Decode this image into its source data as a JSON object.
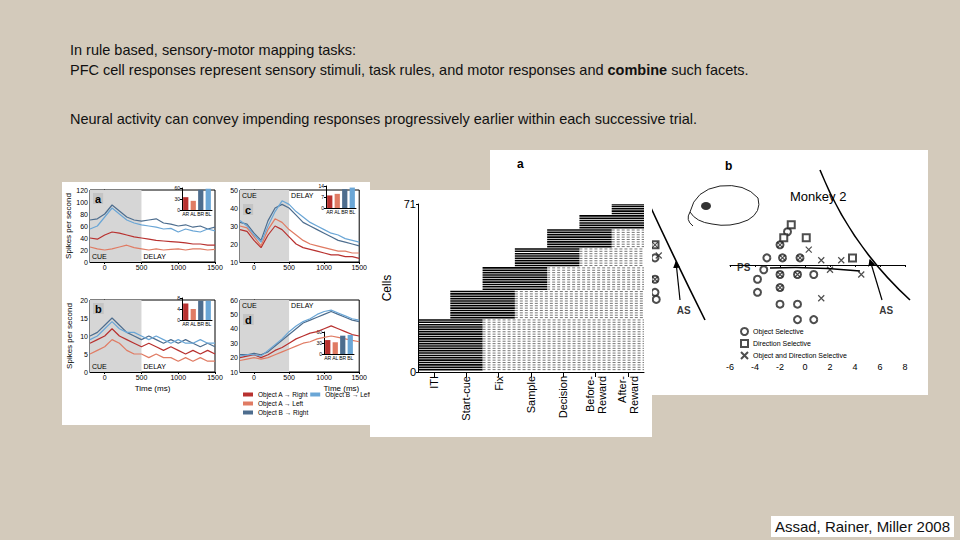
{
  "slide": {
    "lines": [
      "In rule based, sensory-motor mapping tasks:",
      "PFC cell responses represent sensory stimuli, task rules, and motor responses and combine such facets.",
      "Neural activity can convey impending responses progressively earlier within each successive trial."
    ],
    "emphasis": "combine",
    "citation": "Assad, Rainer, Miller 2008"
  },
  "chart_data": [
    {
      "type": "line",
      "title": "a",
      "y_label": "Spikes per second",
      "x": [
        -200,
        -100,
        0,
        100,
        200,
        300,
        400,
        500,
        600,
        700,
        800,
        900,
        1000,
        1100,
        1200,
        1300,
        1400,
        1500
      ],
      "xlim": [
        -200,
        1500
      ],
      "xticks": [
        0,
        500,
        1000,
        1500
      ],
      "ylim": [
        0,
        120
      ],
      "yticks": [
        0,
        20,
        40,
        60,
        80,
        100,
        120
      ],
      "cue_period": [
        -200,
        500
      ],
      "annotations": [
        "CUE",
        "DELAY"
      ],
      "series": [
        {
          "name": "Object A → Right",
          "color": "#b8312f",
          "values": [
            40,
            38,
            45,
            50,
            48,
            45,
            42,
            40,
            38,
            36,
            35,
            34,
            33,
            32,
            30,
            30,
            28,
            28
          ]
        },
        {
          "name": "Object A → Left",
          "color": "#e07b63",
          "values": [
            25,
            22,
            20,
            22,
            25,
            28,
            24,
            22,
            20,
            22,
            20,
            21,
            22,
            20,
            22,
            22,
            20,
            21
          ]
        },
        {
          "name": "Object B → Right",
          "color": "#4d6d8e",
          "values": [
            70,
            72,
            80,
            95,
            85,
            75,
            70,
            68,
            70,
            72,
            65,
            63,
            60,
            62,
            58,
            60,
            55,
            58
          ]
        },
        {
          "name": "Object B → Left",
          "color": "#6aa6d6",
          "values": [
            55,
            60,
            75,
            90,
            80,
            70,
            65,
            62,
            60,
            58,
            55,
            56,
            50,
            55,
            52,
            50,
            55,
            52
          ]
        }
      ],
      "inset": {
        "type": "bar",
        "categories": [
          "AR",
          "AL",
          "BR",
          "BL"
        ],
        "values": [
          35,
          25,
          55,
          58
        ],
        "colors": [
          "#b8312f",
          "#e07b63",
          "#4d6d8e",
          "#6aa6d6"
        ],
        "ylim": [
          0,
          60
        ],
        "yticks": [
          0,
          30,
          60
        ]
      }
    },
    {
      "type": "line",
      "title": "b",
      "y_label": "Spikes per second",
      "x_label": "Time (ms)",
      "x": [
        -200,
        -100,
        0,
        100,
        200,
        300,
        400,
        500,
        600,
        700,
        800,
        900,
        1000,
        1100,
        1200,
        1300,
        1400,
        1500
      ],
      "xlim": [
        -200,
        1500
      ],
      "xticks": [
        0,
        500,
        1000,
        1500
      ],
      "ylim": [
        0,
        20
      ],
      "yticks": [
        0,
        5,
        10,
        15,
        20
      ],
      "cue_period": [
        -200,
        500
      ],
      "annotations": [
        "CUE",
        "DELAY"
      ],
      "series": [
        {
          "name": "Object A → Right",
          "color": "#b8312f",
          "values": [
            8,
            9,
            10,
            12,
            10,
            9,
            8,
            7,
            8,
            7,
            6,
            7,
            6,
            5,
            6,
            5,
            6,
            5
          ]
        },
        {
          "name": "Object A → Left",
          "color": "#e07b63",
          "values": [
            5,
            6,
            7,
            9,
            8,
            6,
            5,
            5,
            4,
            5,
            4,
            4,
            3,
            4,
            3,
            4,
            3,
            3
          ]
        },
        {
          "name": "Object B → Right",
          "color": "#4d6d8e",
          "values": [
            10,
            11,
            13,
            15,
            13,
            11,
            10,
            9,
            10,
            9,
            8,
            9,
            8,
            9,
            8,
            7,
            8,
            7
          ]
        },
        {
          "name": "Object B → Left",
          "color": "#6aa6d6",
          "values": [
            9,
            10,
            12,
            14,
            12,
            11,
            11,
            10,
            9,
            10,
            9,
            8,
            9,
            8,
            8,
            9,
            8,
            8
          ]
        }
      ],
      "inset": {
        "type": "bar",
        "categories": [
          "AR",
          "AL",
          "BR",
          "BL"
        ],
        "values": [
          6,
          4,
          7,
          7
        ],
        "colors": [
          "#b8312f",
          "#e07b63",
          "#4d6d8e",
          "#6aa6d6"
        ],
        "ylim": [
          0,
          8
        ],
        "yticks": [
          0,
          4,
          8
        ]
      }
    },
    {
      "type": "line",
      "title": "c",
      "x": [
        -200,
        -100,
        0,
        100,
        200,
        300,
        400,
        500,
        600,
        700,
        800,
        900,
        1000,
        1100,
        1200,
        1300,
        1400,
        1500
      ],
      "xlim": [
        -200,
        1500
      ],
      "xticks": [
        0,
        500,
        1000,
        1500
      ],
      "ylim": [
        10,
        50
      ],
      "yticks": [
        10,
        20,
        30,
        40,
        50
      ],
      "cue_period": [
        -200,
        500
      ],
      "annotations": [
        "CUE",
        "DELAY"
      ],
      "series": [
        {
          "name": "Object A → Right",
          "color": "#b8312f",
          "values": [
            28,
            27,
            22,
            18,
            25,
            30,
            28,
            24,
            20,
            18,
            17,
            16,
            15,
            14,
            14,
            13,
            13,
            12
          ]
        },
        {
          "name": "Object A → Left",
          "color": "#e07b63",
          "values": [
            30,
            29,
            24,
            19,
            28,
            34,
            32,
            28,
            25,
            22,
            20,
            19,
            18,
            17,
            16,
            16,
            15,
            15
          ]
        },
        {
          "name": "Object B → Right",
          "color": "#4d6d8e",
          "values": [
            32,
            31,
            26,
            22,
            33,
            40,
            42,
            40,
            36,
            32,
            30,
            28,
            26,
            24,
            22,
            21,
            20,
            19
          ]
        },
        {
          "name": "Object B → Left",
          "color": "#6aa6d6",
          "values": [
            33,
            30,
            25,
            21,
            30,
            38,
            44,
            42,
            38,
            35,
            32,
            30,
            28,
            26,
            25,
            23,
            22,
            21
          ]
        }
      ],
      "inset": {
        "type": "bar",
        "categories": [
          "AR",
          "AL",
          "BR",
          "BL"
        ],
        "values": [
          8,
          9,
          12,
          13
        ],
        "colors": [
          "#b8312f",
          "#e07b63",
          "#4d6d8e",
          "#6aa6d6"
        ],
        "ylim": [
          0,
          14
        ],
        "yticks": [
          0,
          7,
          14
        ]
      }
    },
    {
      "type": "line",
      "title": "d",
      "x_label": "Time (ms)",
      "legend": "bottom",
      "x": [
        -200,
        -100,
        0,
        100,
        200,
        300,
        400,
        500,
        600,
        700,
        800,
        900,
        1000,
        1100,
        1200,
        1300,
        1400,
        1500
      ],
      "xlim": [
        -200,
        1500
      ],
      "xticks": [
        0,
        500,
        1000,
        1500
      ],
      "ylim": [
        10,
        60
      ],
      "yticks": [
        10,
        20,
        30,
        40,
        50,
        60
      ],
      "cue_period": [
        -200,
        500
      ],
      "annotations": [
        "CUE",
        "DELAY"
      ],
      "series": [
        {
          "name": "Object A → Right",
          "color": "#b8312f",
          "values": [
            20,
            21,
            22,
            20,
            22,
            25,
            27,
            30,
            33,
            35,
            37,
            38,
            40,
            42,
            40,
            38,
            36,
            35
          ]
        },
        {
          "name": "Object A → Left",
          "color": "#e07b63",
          "values": [
            18,
            19,
            20,
            19,
            20,
            22,
            24,
            26,
            28,
            30,
            31,
            33,
            34,
            35,
            34,
            33,
            32,
            31
          ]
        },
        {
          "name": "Object B → Right",
          "color": "#4d6d8e",
          "values": [
            22,
            22,
            23,
            22,
            24,
            28,
            32,
            36,
            40,
            44,
            46,
            48,
            50,
            52,
            50,
            48,
            46,
            45
          ]
        },
        {
          "name": "Object B → Left",
          "color": "#6aa6d6",
          "values": [
            21,
            22,
            22,
            21,
            25,
            29,
            33,
            38,
            42,
            45,
            47,
            50,
            52,
            53,
            51,
            49,
            47,
            46
          ]
        }
      ],
      "inset": {
        "type": "bar",
        "categories": [
          "AR",
          "AL",
          "BR",
          "BL"
        ],
        "values": [
          38,
          32,
          50,
          52
        ],
        "colors": [
          "#b8312f",
          "#e07b63",
          "#4d6d8e",
          "#6aa6d6"
        ],
        "ylim": [
          0,
          60
        ],
        "yticks": [
          0,
          30,
          60
        ]
      }
    },
    {
      "type": "raster",
      "y_label": "Cells",
      "categories": [
        "ITI",
        "Start-cue",
        "Fix",
        "Sample",
        "Decision",
        "Before-\nReward",
        "After-\nReward"
      ],
      "ylim": [
        0,
        71
      ],
      "yticks": [
        0,
        71
      ],
      "segments": [
        {
          "cells": [
            1,
            22
          ],
          "epochs": [
            0,
            1
          ]
        },
        {
          "cells": [
            23,
            34
          ],
          "epochs": [
            1,
            2
          ]
        },
        {
          "cells": [
            35,
            44
          ],
          "epochs": [
            2,
            3
          ]
        },
        {
          "cells": [
            45,
            52
          ],
          "epochs": [
            3,
            4
          ]
        },
        {
          "cells": [
            53,
            60
          ],
          "epochs": [
            4,
            5
          ]
        },
        {
          "cells": [
            61,
            66
          ],
          "epochs": [
            5,
            6
          ]
        },
        {
          "cells": [
            67,
            71
          ],
          "epochs": [
            6,
            6
          ]
        }
      ]
    },
    {
      "type": "scatter",
      "title": "a",
      "xlim": [
        -8,
        8
      ],
      "ylim": [
        -8,
        8
      ],
      "tick_labels": false,
      "series": [
        {
          "name": "Object Selective",
          "marker": "circle",
          "color": "#222222",
          "values": [
            [
              3.6,
              0.6
            ],
            [
              3.6,
              -1.2
            ],
            [
              3.6,
              -2.3
            ],
            [
              3.7,
              -2.9
            ]
          ]
        },
        {
          "name": "Direction Selective",
          "marker": "square",
          "color": "#222222",
          "values": [
            [
              3.6,
              1.7
            ]
          ]
        },
        {
          "name": "Object and Direction Selective",
          "marker": "cross",
          "color": "#222222",
          "values": [
            [
              3.6,
              1.7
            ],
            [
              3.6,
              -1.2
            ],
            [
              3.9,
              0.8
            ]
          ]
        }
      ],
      "annotations": [
        {
          "text": "AS",
          "x": 5.9,
          "y": -3.8
        }
      ]
    },
    {
      "type": "scatter",
      "title": "b",
      "subtitle": "Monkey 2",
      "xlim": [
        -6,
        8
      ],
      "xticks": [
        -6,
        -4,
        -2,
        0,
        2,
        4,
        6,
        8
      ],
      "ylim": [
        -8,
        8
      ],
      "tick_labels": "x",
      "legend": "bottom-left",
      "series": [
        {
          "name": "Object Selective",
          "marker": "circle",
          "color": "#222222",
          "values": [
            [
              -3.05,
              0.6
            ],
            [
              -3.8,
              -1.2
            ],
            [
              -3.8,
              -2.3
            ],
            [
              0.7,
              -0.8
            ],
            [
              -0.6,
              -3.3
            ],
            [
              -2.0,
              -3.3
            ],
            [
              0.7,
              -4.6
            ],
            [
              -0.6,
              -4.6
            ],
            [
              -3.3,
              -0.4
            ],
            [
              -1.4,
              2.8
            ],
            [
              -2.0,
              1.7
            ],
            [
              -1.8,
              0.6
            ],
            [
              -0.4,
              0.6
            ],
            [
              -2.0,
              -0.8
            ],
            [
              -0.6,
              -0.8
            ],
            [
              -2.0,
              -1.9
            ]
          ]
        },
        {
          "name": "Direction Selective",
          "marker": "square",
          "color": "#222222",
          "values": [
            [
              -1.1,
              3.4
            ],
            [
              0.1,
              2.3
            ],
            [
              -1.7,
              2.3
            ],
            [
              3.8,
              0.6
            ]
          ]
        },
        {
          "name": "Object and Direction Selective",
          "marker": "cross",
          "color": "#222222",
          "values": [
            [
              1.3,
              0.4
            ],
            [
              2.9,
              0.4
            ],
            [
              2.0,
              -0.4
            ],
            [
              1.3,
              -2.8
            ],
            [
              4.5,
              -0.8
            ],
            [
              0.3,
              1.3
            ],
            [
              -2.0,
              1.7
            ],
            [
              -1.8,
              0.6
            ],
            [
              -0.4,
              0.6
            ],
            [
              -2.0,
              -0.8
            ],
            [
              -0.6,
              -0.8
            ],
            [
              -2.0,
              -1.9
            ]
          ]
        }
      ],
      "annotations": [
        {
          "text": "PS",
          "x": -4.9,
          "y": -0.2
        },
        {
          "text": "AS",
          "x": 6.5,
          "y": -3.8
        }
      ]
    }
  ]
}
